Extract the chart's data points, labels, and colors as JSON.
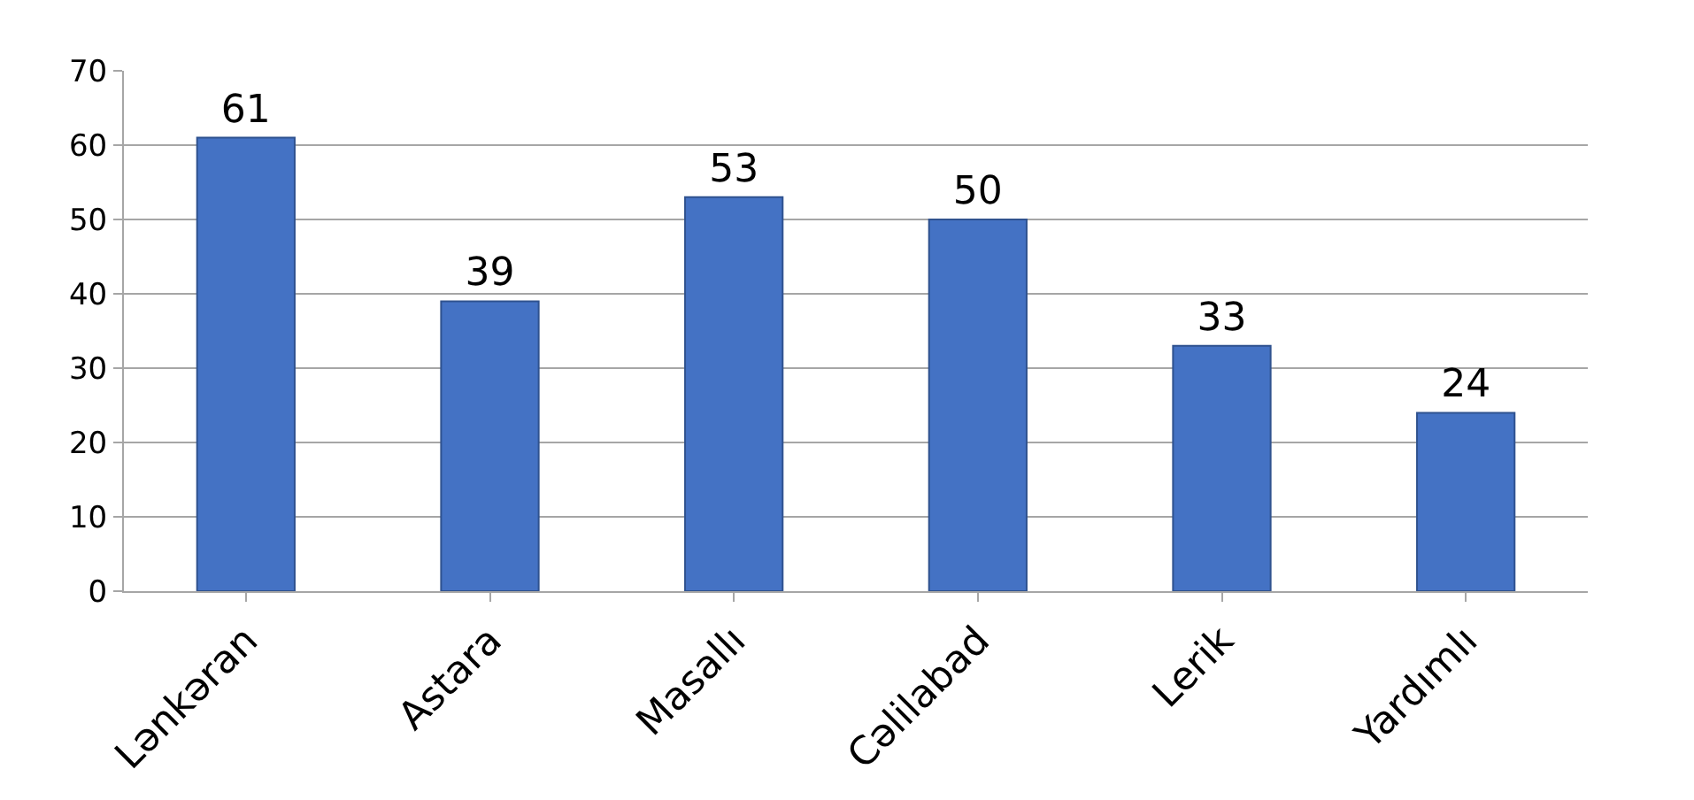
{
  "chart_data": {
    "type": "bar",
    "categories": [
      "Lənkəran",
      "Astara",
      "Masallı",
      "Cəlilabad",
      "Lerik",
      "Yardımlı"
    ],
    "values": [
      61,
      39,
      53,
      50,
      33,
      24
    ],
    "color": "#4472c4",
    "ylim": [
      0,
      70
    ],
    "yticks": [
      0,
      10,
      20,
      30,
      40,
      50,
      60,
      70
    ],
    "grid": "y",
    "data_labels": true
  }
}
